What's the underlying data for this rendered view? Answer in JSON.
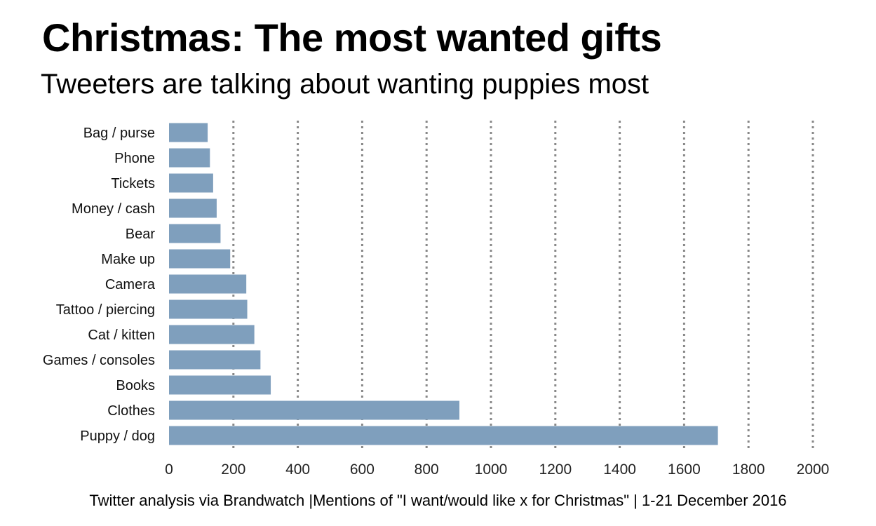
{
  "title": "Christmas: The most wanted gifts",
  "subtitle": "Tweeters are talking about wanting puppies most",
  "footer": "Twitter analysis via Brandwatch |Mentions of \"I want/would like x for Christmas\" | 1-21 December 2016",
  "chart_data": {
    "type": "bar",
    "orientation": "horizontal",
    "title": "Christmas: The most wanted gifts",
    "subtitle": "Tweeters are talking about wanting puppies most",
    "xlabel": "",
    "ylabel": "",
    "categories": [
      "Bag / purse",
      "Phone",
      "Tickets",
      "Money / cash",
      "Bear",
      "Make up",
      "Camera",
      "Tattoo / piercing",
      "Cat / kitten",
      "Games / consoles",
      "Books",
      "Clothes",
      "Puppy / dog"
    ],
    "values": [
      120,
      127,
      137,
      148,
      160,
      190,
      240,
      243,
      265,
      284,
      316,
      902,
      1705
    ],
    "xlim": [
      0,
      2000
    ],
    "xticks": [
      0,
      200,
      400,
      600,
      800,
      1000,
      1200,
      1400,
      1600,
      1800,
      2000
    ],
    "grid": "vertical dotted",
    "legend": "none",
    "bar_color": "#7f9fbd",
    "grid_color": "#888888"
  }
}
